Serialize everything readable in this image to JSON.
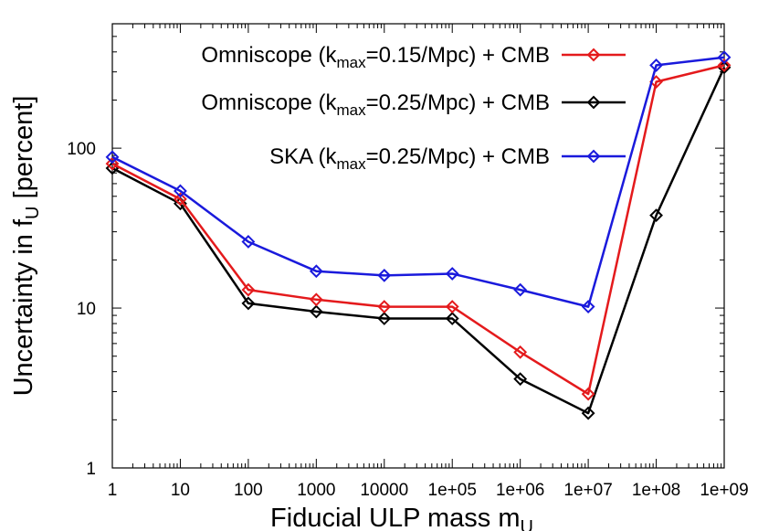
{
  "chart_data": {
    "type": "line",
    "xlabel": {
      "main": "Fiducial ULP mass m",
      "sub": "U"
    },
    "ylabel": {
      "main": "Uncertainty in f",
      "sub": "U",
      "tail": " [percent]"
    },
    "x_scale": "log",
    "y_scale": "log",
    "xlim": [
      1,
      1000000000
    ],
    "ylim": [
      1,
      600
    ],
    "x_ticks": [
      {
        "value": 1,
        "label": "1"
      },
      {
        "value": 10,
        "label": "10"
      },
      {
        "value": 100,
        "label": "100"
      },
      {
        "value": 1000,
        "label": "1000"
      },
      {
        "value": 10000,
        "label": "10000"
      },
      {
        "value": 100000,
        "label": "1e+05"
      },
      {
        "value": 1000000,
        "label": "1e+06"
      },
      {
        "value": 10000000,
        "label": "1e+07"
      },
      {
        "value": 100000000,
        "label": "1e+08"
      },
      {
        "value": 1000000000,
        "label": "1e+09"
      }
    ],
    "y_ticks": [
      {
        "value": 1,
        "label": "1"
      },
      {
        "value": 10,
        "label": "10"
      },
      {
        "value": 100,
        "label": "100"
      }
    ],
    "legend_position": "top-right",
    "grid": false,
    "x": [
      1,
      10,
      100,
      1000,
      10000,
      100000,
      1000000,
      10000000,
      100000000,
      1000000000
    ],
    "series": [
      {
        "name": "Omniscope (k_max=0.15/Mpc) + CMB",
        "legend": {
          "pre": "Omniscope (k",
          "sub": "max",
          "post": "=0.15/Mpc) + CMB"
        },
        "color": "#e41a1c",
        "values": [
          80,
          48,
          13,
          11.3,
          10.2,
          10.2,
          5.3,
          2.9,
          260,
          330
        ]
      },
      {
        "name": "Omniscope (k_max=0.25/Mpc) + CMB",
        "legend": {
          "pre": "Omniscope (k",
          "sub": "max",
          "post": "=0.25/Mpc) + CMB"
        },
        "color": "#000000",
        "values": [
          75,
          45,
          10.7,
          9.5,
          8.6,
          8.6,
          3.6,
          2.2,
          38,
          320
        ]
      },
      {
        "name": "SKA (k_max=0.25/Mpc) + CMB",
        "legend": {
          "pre": "SKA (k",
          "sub": "max",
          "post": "=0.25/Mpc) + CMB"
        },
        "color": "#1a1adc",
        "values": [
          88,
          54,
          26,
          17,
          16,
          16.4,
          13,
          10.2,
          330,
          370
        ]
      }
    ]
  }
}
